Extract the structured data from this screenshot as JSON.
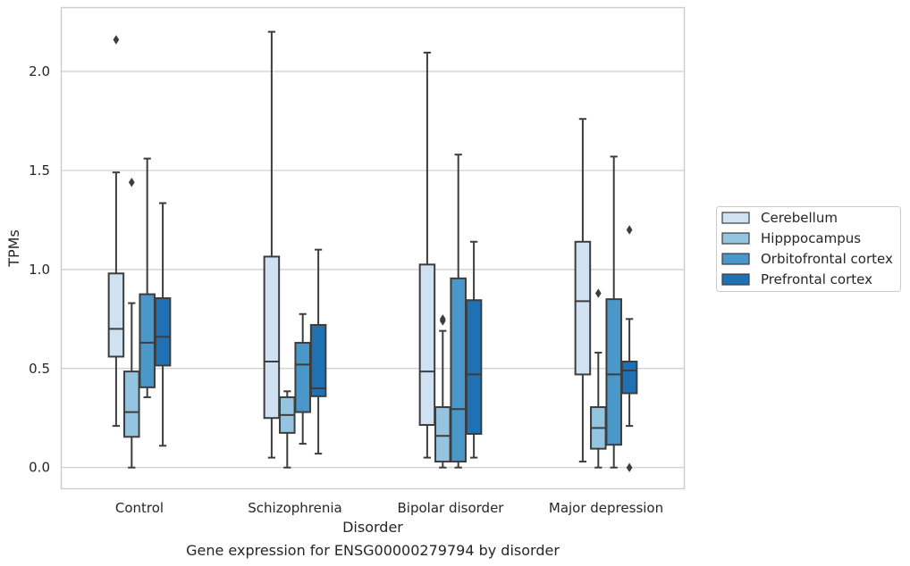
{
  "chart_data": {
    "type": "box",
    "title": "",
    "caption": "Gene expression for ENSG00000279794 by disorder",
    "xlabel": "Disorder",
    "ylabel": "TPMs",
    "ylim": [
      -0.105,
      2.32
    ],
    "yticks": [
      0.0,
      0.5,
      1.0,
      1.5,
      2.0
    ],
    "ytick_labels": [
      "0.0",
      "0.5",
      "1.0",
      "1.5",
      "2.0"
    ],
    "grid": "horizontal",
    "legend_position": "right",
    "categories": [
      "Control",
      "Schizophrenia",
      "Bipolar disorder",
      "Major depression"
    ],
    "series": [
      {
        "name": "Cerebellum",
        "color": "#d0e1f2",
        "boxes": [
          {
            "whisker_low": 0.21,
            "q1": 0.56,
            "median": 0.7,
            "q3": 0.98,
            "whisker_high": 1.49,
            "outliers": [
              2.16
            ]
          },
          {
            "whisker_low": 0.05,
            "q1": 0.25,
            "median": 0.535,
            "q3": 1.065,
            "whisker_high": 2.2,
            "outliers": []
          },
          {
            "whisker_low": 0.05,
            "q1": 0.215,
            "median": 0.485,
            "q3": 1.025,
            "whisker_high": 2.095,
            "outliers": []
          },
          {
            "whisker_low": 0.03,
            "q1": 0.47,
            "median": 0.84,
            "q3": 1.14,
            "whisker_high": 1.76,
            "outliers": []
          }
        ]
      },
      {
        "name": "Hipppocampus",
        "color": "#94c4df",
        "boxes": [
          {
            "whisker_low": 0.0,
            "q1": 0.155,
            "median": 0.28,
            "q3": 0.485,
            "whisker_high": 0.83,
            "outliers": [
              1.44
            ]
          },
          {
            "whisker_low": 0.0,
            "q1": 0.175,
            "median": 0.265,
            "q3": 0.355,
            "whisker_high": 0.385,
            "outliers": []
          },
          {
            "whisker_low": 0.0,
            "q1": 0.03,
            "median": 0.16,
            "q3": 0.305,
            "whisker_high": 0.69,
            "outliers": [
              0.74,
              0.75
            ]
          },
          {
            "whisker_low": 0.0,
            "q1": 0.095,
            "median": 0.2,
            "q3": 0.305,
            "whisker_high": 0.58,
            "outliers": [
              0.88
            ]
          }
        ]
      },
      {
        "name": "Orbitofrontal cortex",
        "color": "#4a98c9",
        "boxes": [
          {
            "whisker_low": 0.355,
            "q1": 0.405,
            "median": 0.63,
            "q3": 0.875,
            "whisker_high": 1.56,
            "outliers": []
          },
          {
            "whisker_low": 0.12,
            "q1": 0.28,
            "median": 0.52,
            "q3": 0.63,
            "whisker_high": 0.775,
            "outliers": []
          },
          {
            "whisker_low": 0.0,
            "q1": 0.03,
            "median": 0.295,
            "q3": 0.955,
            "whisker_high": 1.58,
            "outliers": []
          },
          {
            "whisker_low": 0.0,
            "q1": 0.115,
            "median": 0.47,
            "q3": 0.85,
            "whisker_high": 1.57,
            "outliers": []
          }
        ]
      },
      {
        "name": "Prefrontal cortex",
        "color": "#2070b4",
        "boxes": [
          {
            "whisker_low": 0.11,
            "q1": 0.515,
            "median": 0.66,
            "q3": 0.855,
            "whisker_high": 1.335,
            "outliers": []
          },
          {
            "whisker_low": 0.07,
            "q1": 0.36,
            "median": 0.4,
            "q3": 0.72,
            "whisker_high": 1.1,
            "outliers": []
          },
          {
            "whisker_low": 0.05,
            "q1": 0.17,
            "median": 0.47,
            "q3": 0.845,
            "whisker_high": 1.14,
            "outliers": []
          },
          {
            "whisker_low": 0.21,
            "q1": 0.375,
            "median": 0.49,
            "q3": 0.535,
            "whisker_high": 0.75,
            "outliers": [
              1.2,
              0.0
            ]
          }
        ]
      }
    ]
  }
}
